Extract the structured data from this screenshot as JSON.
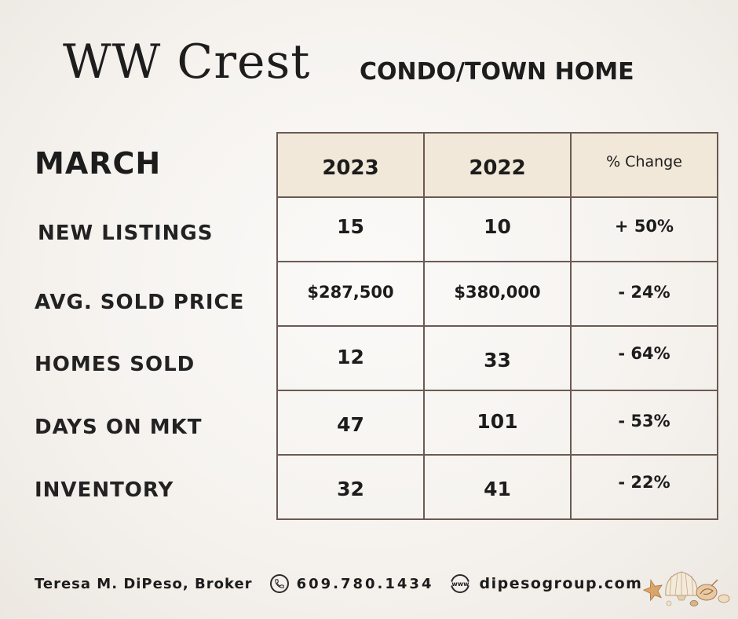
{
  "header": {
    "title": "WW Crest",
    "subtitle": "CONDO/TOWN HOME"
  },
  "month": "MARCH",
  "table": {
    "columns": [
      "2023",
      "2022",
      "% Change"
    ],
    "rows": [
      {
        "label": "NEW LISTINGS",
        "values": [
          "15",
          "10",
          "+ 50%"
        ]
      },
      {
        "label": "AVG. SOLD PRICE",
        "values": [
          "$287,500",
          "$380,000",
          "- 24%"
        ]
      },
      {
        "label": "HOMES SOLD",
        "values": [
          "12",
          "33",
          "- 64%"
        ]
      },
      {
        "label": "DAYS ON MKT",
        "values": [
          "47",
          "101",
          "- 53%"
        ]
      },
      {
        "label": "INVENTORY",
        "values": [
          "32",
          "41",
          "- 22%"
        ]
      }
    ]
  },
  "footer": {
    "broker": "Teresa M. DiPeso, Broker",
    "phone": "609.780.1434",
    "www_icon_label": "www",
    "website": "dipesogroup.com"
  },
  "icons": {
    "phone": "phone-icon",
    "web": "globe-www-icon",
    "decoration": "seashells-icon"
  },
  "colors": {
    "header_fill": "#f1e8d9",
    "border": "#6b5a52",
    "text": "#1c1c1c"
  }
}
